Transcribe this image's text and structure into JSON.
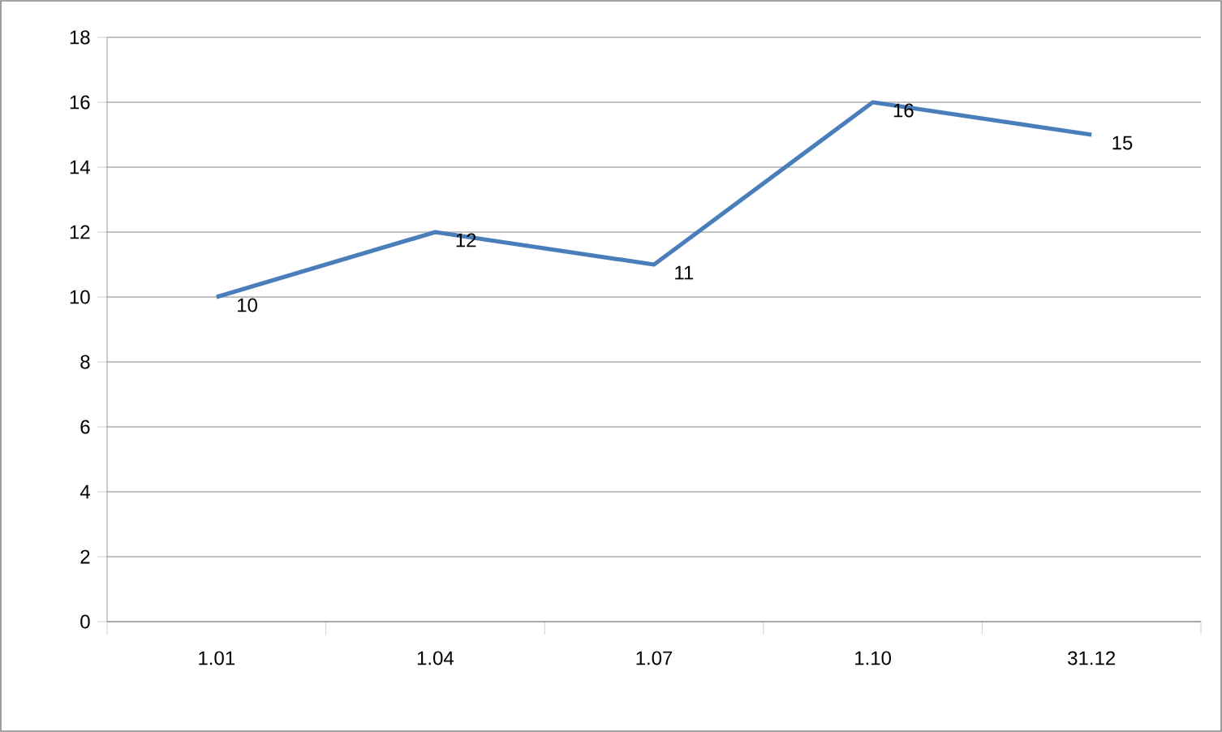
{
  "chart_data": {
    "type": "line",
    "categories": [
      "1.01",
      "1.04",
      "1.07",
      "1.10",
      "31.12"
    ],
    "values": [
      10,
      12,
      11,
      16,
      15
    ],
    "color": "#4a7ebb",
    "ylim": [
      0,
      18
    ],
    "yticks": [
      0,
      2,
      4,
      6,
      8,
      10,
      12,
      14,
      16,
      18
    ],
    "grid": "y",
    "data_labels": true,
    "marker": "none",
    "line_style": "solid"
  }
}
